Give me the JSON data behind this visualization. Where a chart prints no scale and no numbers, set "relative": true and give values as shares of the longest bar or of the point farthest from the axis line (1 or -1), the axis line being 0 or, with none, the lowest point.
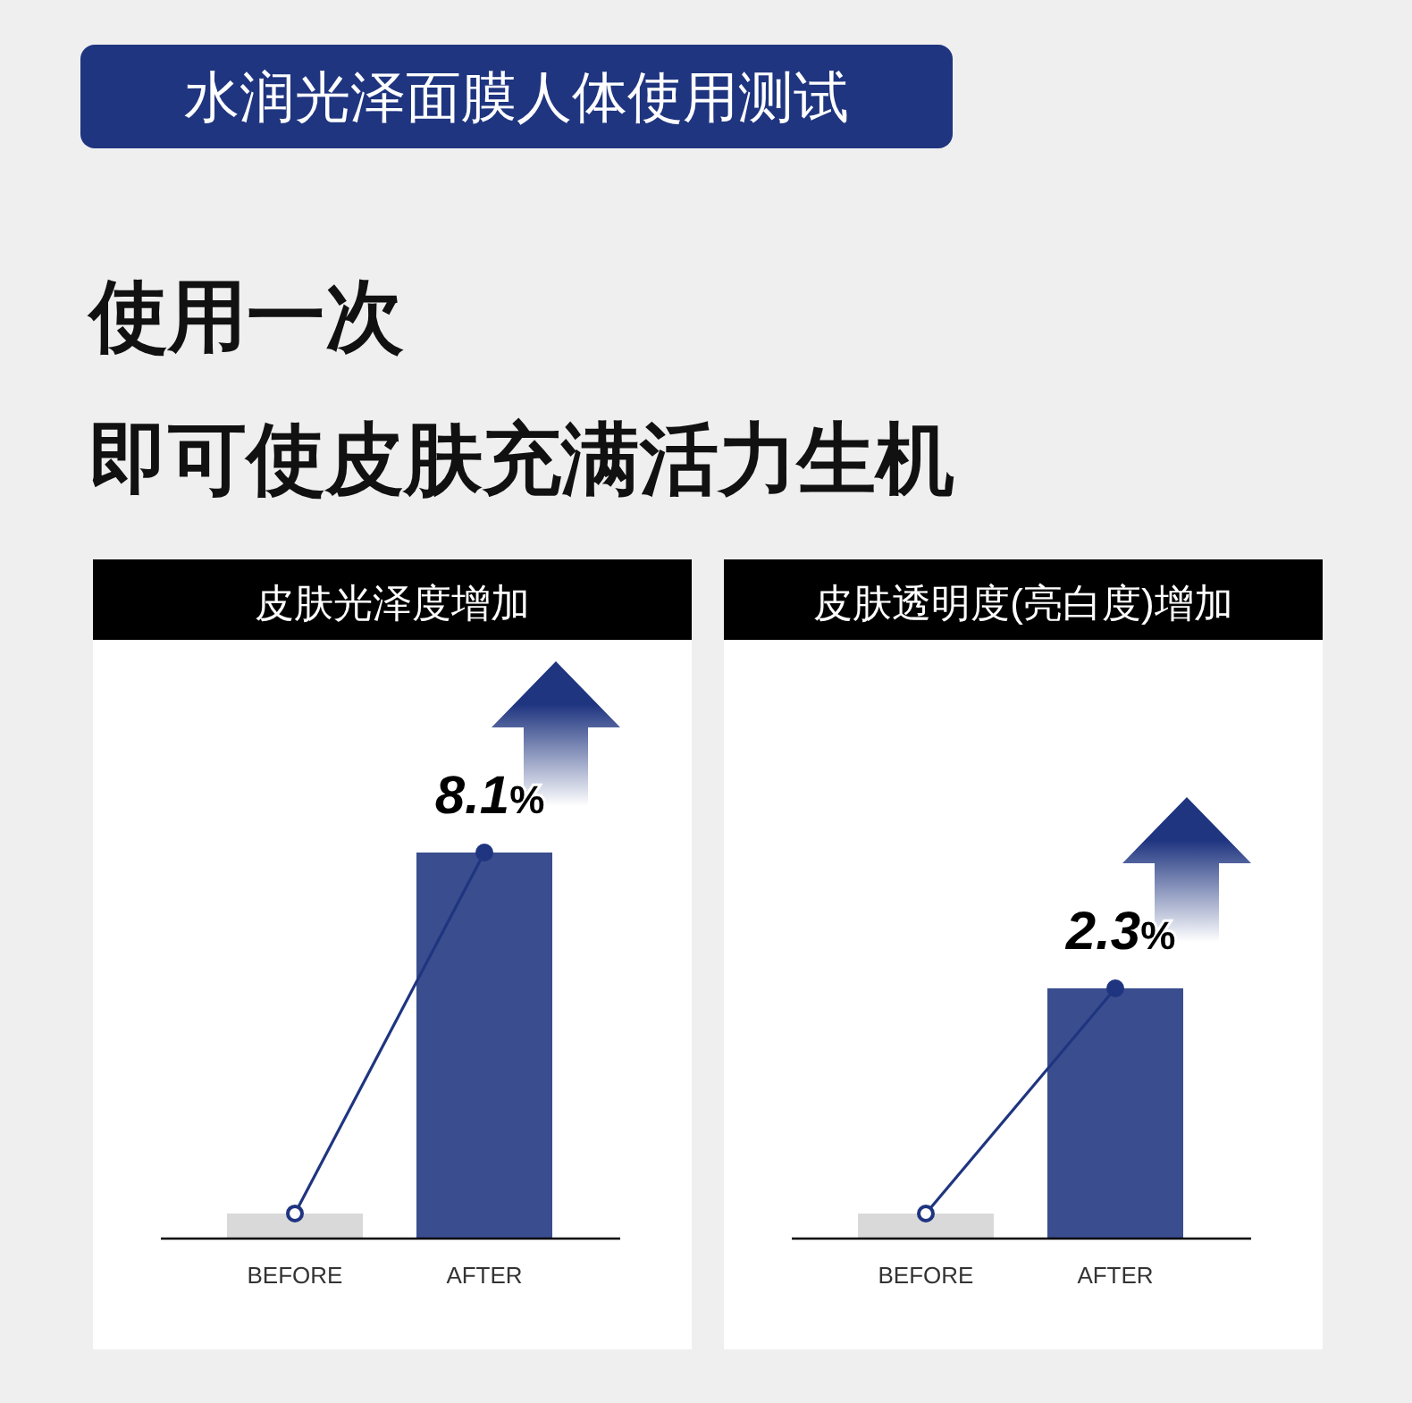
{
  "chart_data": [
    {
      "type": "other",
      "title": "水润光泽面膜人体使用测试",
      "subtitle": "使用一次",
      "annotations": [
        "即可使皮肤充满活力生机"
      ]
    },
    {
      "type": "bar",
      "title": "皮肤光泽度增加",
      "categories": [
        "BEFORE",
        "AFTER"
      ],
      "relative": true,
      "series": [
        {
          "type": "bar",
          "colors": [
            "#d9d9d9",
            "#3a4e8f"
          ],
          "values": [
            0.065,
            1
          ]
        },
        {
          "type": "line",
          "color": "#1f3580",
          "values": [
            0.065,
            1
          ],
          "marker": "circle"
        }
      ],
      "annotations": [
        "8.1%"
      ]
    },
    {
      "type": "bar",
      "title": "皮肤透明度(亮白度)增加",
      "categories": [
        "BEFORE",
        "AFTER"
      ],
      "relative": true,
      "series": [
        {
          "type": "bar",
          "colors": [
            "#d9d9d9",
            "#3a4e8f"
          ],
          "values": [
            0.1,
            1
          ]
        },
        {
          "type": "line",
          "color": "#1f3580",
          "values": [
            0.1,
            1
          ],
          "marker": "circle"
        }
      ],
      "annotations": [
        "2.3%"
      ]
    }
  ]
}
